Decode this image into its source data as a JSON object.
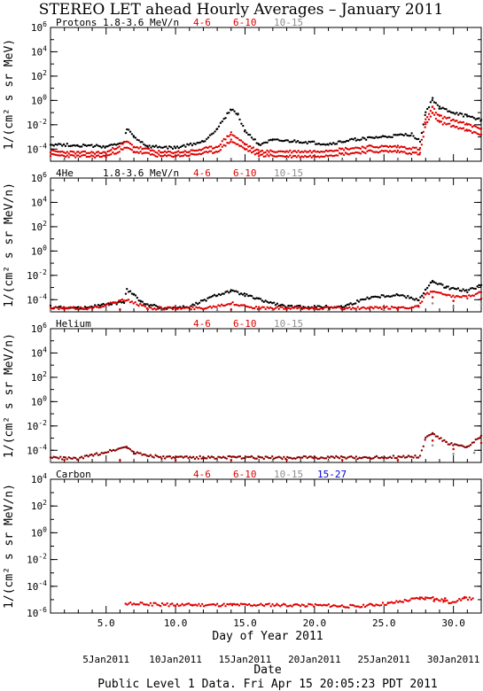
{
  "title": "STEREO LET ahead Hourly Averages – January 2011",
  "footer": "Public Level 1 Data. Fri Apr 15 20:05:23 PDT 2011",
  "xlabel": "Day of Year 2011",
  "date_label": "Date",
  "colors": {
    "black": "#000000",
    "red": "#e00000",
    "gray": "#909090",
    "blue": "#0000e0",
    "darkred": "#8a0000"
  },
  "chart_data": [
    {
      "type": "scatter",
      "name": "Protons",
      "energy_label": "1.8-3.6 MeV/n",
      "ylabel": "1/(cm² s sr MeV)",
      "yscale": "log",
      "ylim_exp": [
        -5,
        6
      ],
      "yticks": [
        "10^6",
        "10^4",
        "10^2",
        "10^0",
        "10^-2",
        "10^-4"
      ],
      "xlim": [
        1,
        32
      ],
      "legend": [
        {
          "label": "4-6",
          "color": "#e00000"
        },
        {
          "label": "6-10",
          "color": "#e00000"
        },
        {
          "label": "10-15",
          "color": "#909090"
        }
      ],
      "series": [
        {
          "name": "1.8-3.6 MeV/n",
          "color": "#000000",
          "points": [
            [
              1,
              -3.6
            ],
            [
              3,
              -3.7
            ],
            [
              5,
              -3.8
            ],
            [
              6.3,
              -3.5
            ],
            [
              6.5,
              -2.3
            ],
            [
              7,
              -3.0
            ],
            [
              8,
              -3.8
            ],
            [
              10,
              -3.9
            ],
            [
              12,
              -3.4
            ],
            [
              13,
              -2.3
            ],
            [
              14,
              -0.7
            ],
            [
              14.5,
              -1.2
            ],
            [
              15,
              -2.5
            ],
            [
              16,
              -3.6
            ],
            [
              17,
              -3.3
            ],
            [
              19,
              -3.4
            ],
            [
              21,
              -3.6
            ],
            [
              23,
              -3.2
            ],
            [
              25,
              -3.0
            ],
            [
              27,
              -2.8
            ],
            [
              27.6,
              -3.3
            ],
            [
              28,
              -1.0
            ],
            [
              28.5,
              0.1
            ],
            [
              29,
              -0.6
            ],
            [
              30,
              -1.0
            ],
            [
              31,
              -1.3
            ],
            [
              32,
              -1.6
            ]
          ]
        },
        {
          "name": "4-6",
          "color": "#e00000",
          "points": [
            [
              1,
              -4.2
            ],
            [
              3,
              -4.3
            ],
            [
              5,
              -4.3
            ],
            [
              6.5,
              -3.4
            ],
            [
              7,
              -3.8
            ],
            [
              9,
              -4.3
            ],
            [
              11,
              -4.2
            ],
            [
              13,
              -3.8
            ],
            [
              14,
              -2.7
            ],
            [
              15,
              -3.6
            ],
            [
              16,
              -4.2
            ],
            [
              18,
              -4.2
            ],
            [
              20,
              -4.2
            ],
            [
              22,
              -4.0
            ],
            [
              24,
              -3.8
            ],
            [
              26,
              -3.8
            ],
            [
              27.6,
              -4.0
            ],
            [
              28,
              -1.6
            ],
            [
              28.5,
              -0.6
            ],
            [
              29,
              -1.3
            ],
            [
              30,
              -1.6
            ],
            [
              31,
              -2.0
            ],
            [
              32,
              -2.3
            ]
          ]
        },
        {
          "name": "6-10",
          "color": "#e00000",
          "points": [
            [
              1,
              -4.5
            ],
            [
              3,
              -4.6
            ],
            [
              5,
              -4.6
            ],
            [
              6.5,
              -3.9
            ],
            [
              7,
              -4.2
            ],
            [
              9,
              -4.6
            ],
            [
              11,
              -4.5
            ],
            [
              13,
              -4.2
            ],
            [
              14,
              -3.3
            ],
            [
              15,
              -4.0
            ],
            [
              16,
              -4.5
            ],
            [
              18,
              -4.6
            ],
            [
              20,
              -4.6
            ],
            [
              22,
              -4.4
            ],
            [
              24,
              -4.2
            ],
            [
              26,
              -4.2
            ],
            [
              27.6,
              -4.4
            ],
            [
              28,
              -2.0
            ],
            [
              28.5,
              -1.1
            ],
            [
              29,
              -1.8
            ],
            [
              30,
              -2.1
            ],
            [
              31,
              -2.5
            ],
            [
              32,
              -2.8
            ]
          ]
        },
        {
          "name": "10-15",
          "color": "#909090",
          "points": [
            [
              2,
              -4.9
            ],
            [
              6,
              -4.9
            ],
            [
              10,
              -4.9
            ],
            [
              14,
              -4.8
            ],
            [
              18,
              -4.9
            ],
            [
              22,
              -4.9
            ],
            [
              26,
              -4.9
            ]
          ]
        }
      ]
    },
    {
      "type": "scatter",
      "name": "4He",
      "energy_label": "1.8-3.6 MeV/n",
      "ylabel": "1/(cm² s sr MeV/n)",
      "yscale": "log",
      "ylim_exp": [
        -5,
        6
      ],
      "yticks": [
        "10^6",
        "10^4",
        "10^2",
        "10^0",
        "10^-2",
        "10^-4"
      ],
      "xlim": [
        1,
        32
      ],
      "legend": [
        {
          "label": "4-6",
          "color": "#e00000"
        },
        {
          "label": "6-10",
          "color": "#e00000"
        },
        {
          "label": "10-15",
          "color": "#909090"
        }
      ],
      "series": [
        {
          "name": "1.8-3.6 MeV/n",
          "color": "#000000",
          "points": [
            [
              1,
              -4.6
            ],
            [
              3,
              -4.7
            ],
            [
              6.3,
              -4.2
            ],
            [
              6.5,
              -3.2
            ],
            [
              7,
              -3.5
            ],
            [
              7.5,
              -4.2
            ],
            [
              9,
              -4.7
            ],
            [
              11,
              -4.6
            ],
            [
              13,
              -3.6
            ],
            [
              14,
              -3.3
            ],
            [
              15,
              -3.6
            ],
            [
              16,
              -4.0
            ],
            [
              18,
              -4.6
            ],
            [
              20,
              -4.6
            ],
            [
              22,
              -4.6
            ],
            [
              24,
              -3.8
            ],
            [
              26,
              -3.6
            ],
            [
              27.5,
              -4.0
            ],
            [
              28,
              -3.2
            ],
            [
              28.5,
              -2.5
            ],
            [
              29.5,
              -3.0
            ],
            [
              31,
              -3.3
            ],
            [
              32,
              -2.8
            ]
          ]
        },
        {
          "name": "4-6",
          "color": "#e00000",
          "points": [
            [
              1,
              -4.7
            ],
            [
              4,
              -4.7
            ],
            [
              6.5,
              -4.0
            ],
            [
              8,
              -4.7
            ],
            [
              12,
              -4.7
            ],
            [
              14,
              -4.3
            ],
            [
              16,
              -4.7
            ],
            [
              20,
              -4.7
            ],
            [
              24,
              -4.7
            ],
            [
              27.5,
              -4.6
            ],
            [
              28,
              -3.6
            ],
            [
              28.5,
              -3.3
            ],
            [
              29.5,
              -3.7
            ],
            [
              31,
              -3.8
            ],
            [
              32,
              -3.4
            ]
          ]
        },
        {
          "name": "6-10",
          "color": "#e00000",
          "points": [
            [
              2,
              -4.8
            ],
            [
              6,
              -4.8
            ],
            [
              10,
              -4.8
            ],
            [
              14,
              -4.8
            ],
            [
              18,
              -4.8
            ],
            [
              22,
              -4.8
            ],
            [
              26,
              -4.8
            ],
            [
              28.5,
              -3.8
            ],
            [
              30,
              -4.1
            ],
            [
              32,
              -3.9
            ]
          ]
        },
        {
          "name": "10-15",
          "color": "#909090",
          "points": [
            [
              1,
              -4.9
            ],
            [
              5,
              -4.9
            ],
            [
              9,
              -4.9
            ],
            [
              13,
              -4.9
            ],
            [
              17,
              -4.9
            ],
            [
              21,
              -4.9
            ],
            [
              25,
              -4.9
            ],
            [
              28.5,
              -4.3
            ],
            [
              30,
              -4.6
            ],
            [
              32,
              -4.4
            ]
          ]
        }
      ]
    },
    {
      "type": "scatter",
      "name": "Helium",
      "energy_label": "",
      "ylabel": "1/(cm² s sr MeV/n)",
      "yscale": "log",
      "ylim_exp": [
        -5,
        6
      ],
      "yticks": [
        "10^6",
        "10^4",
        "10^2",
        "10^0",
        "10^-2",
        "10^-4"
      ],
      "xlim": [
        1,
        32
      ],
      "legend": [
        {
          "label": "4-6",
          "color": "#e00000"
        },
        {
          "label": "6-10",
          "color": "#e00000"
        },
        {
          "label": "10-15",
          "color": "#909090"
        }
      ],
      "series": [
        {
          "name": "4-6",
          "color": "#8a0000",
          "points": [
            [
              1,
              -4.6
            ],
            [
              3,
              -4.7
            ],
            [
              6.5,
              -3.7
            ],
            [
              7,
              -4.2
            ],
            [
              9,
              -4.6
            ],
            [
              12,
              -4.6
            ],
            [
              16,
              -4.6
            ],
            [
              20,
              -4.6
            ],
            [
              24,
              -4.6
            ],
            [
              27.6,
              -4.5
            ],
            [
              28,
              -3.0
            ],
            [
              28.5,
              -2.6
            ],
            [
              29.5,
              -3.4
            ],
            [
              31,
              -3.8
            ],
            [
              32,
              -2.8
            ]
          ]
        },
        {
          "name": "6-10",
          "color": "#e00000",
          "points": [
            [
              2,
              -4.8
            ],
            [
              6,
              -4.8
            ],
            [
              10,
              -4.8
            ],
            [
              14,
              -4.8
            ],
            [
              18,
              -4.8
            ],
            [
              22,
              -4.8
            ],
            [
              26,
              -4.8
            ],
            [
              28.5,
              -3.2
            ],
            [
              30,
              -3.9
            ],
            [
              32,
              -3.4
            ]
          ]
        },
        {
          "name": "10-15",
          "color": "#909090",
          "points": [
            [
              1,
              -4.9
            ],
            [
              5,
              -4.9
            ],
            [
              9,
              -4.9
            ],
            [
              13,
              -4.9
            ],
            [
              17,
              -4.9
            ],
            [
              21,
              -4.9
            ],
            [
              25,
              -4.9
            ],
            [
              28.5,
              -3.6
            ],
            [
              30,
              -4.3
            ],
            [
              31.5,
              -4.2
            ]
          ]
        }
      ]
    },
    {
      "type": "scatter",
      "name": "Carbon",
      "energy_label": "",
      "ylabel": "1/(cm² s sr MeV/n)",
      "yscale": "log",
      "ylim_exp": [
        -6,
        4
      ],
      "yticks": [
        "10^4",
        "10^2",
        "10^0",
        "10^-2",
        "10^-4",
        "10^-6"
      ],
      "xlim": [
        1,
        32
      ],
      "legend": [
        {
          "label": "4-6",
          "color": "#e00000"
        },
        {
          "label": "6-10",
          "color": "#e00000"
        },
        {
          "label": "10-15",
          "color": "#909090"
        },
        {
          "label": "15-27",
          "color": "#0000e0"
        }
      ],
      "series": [
        {
          "name": "4-6",
          "color": "#e00000",
          "points": [
            [
              6.4,
              -5.3
            ],
            [
              10,
              -5.4
            ],
            [
              11.2,
              -5.4
            ],
            [
              14.1,
              -5.4
            ],
            [
              17.3,
              -5.4
            ],
            [
              19.1,
              -5.4
            ],
            [
              22.8,
              -5.5
            ],
            [
              24.2,
              -5.4
            ],
            [
              25.3,
              -5.3
            ],
            [
              27.6,
              -4.9
            ],
            [
              28,
              -4.9
            ],
            [
              28.4,
              -4.8
            ],
            [
              28.8,
              -5.0
            ],
            [
              29.3,
              -5.1
            ],
            [
              29.7,
              -5.2
            ],
            [
              30.8,
              -4.9
            ],
            [
              31.4,
              -4.9
            ]
          ]
        },
        {
          "name": "6-10",
          "color": "#e00000",
          "points": [
            [
              28.6,
              -5.1
            ],
            [
              29.4,
              -4.9
            ]
          ]
        }
      ]
    }
  ],
  "x_ticks": [
    "5.0",
    "10.0",
    "15.0",
    "20.0",
    "25.0",
    "30.0"
  ],
  "date_ticks": [
    "5Jan2011",
    "10Jan2011",
    "15Jan2011",
    "20Jan2011",
    "25Jan2011",
    "30Jan2011"
  ]
}
